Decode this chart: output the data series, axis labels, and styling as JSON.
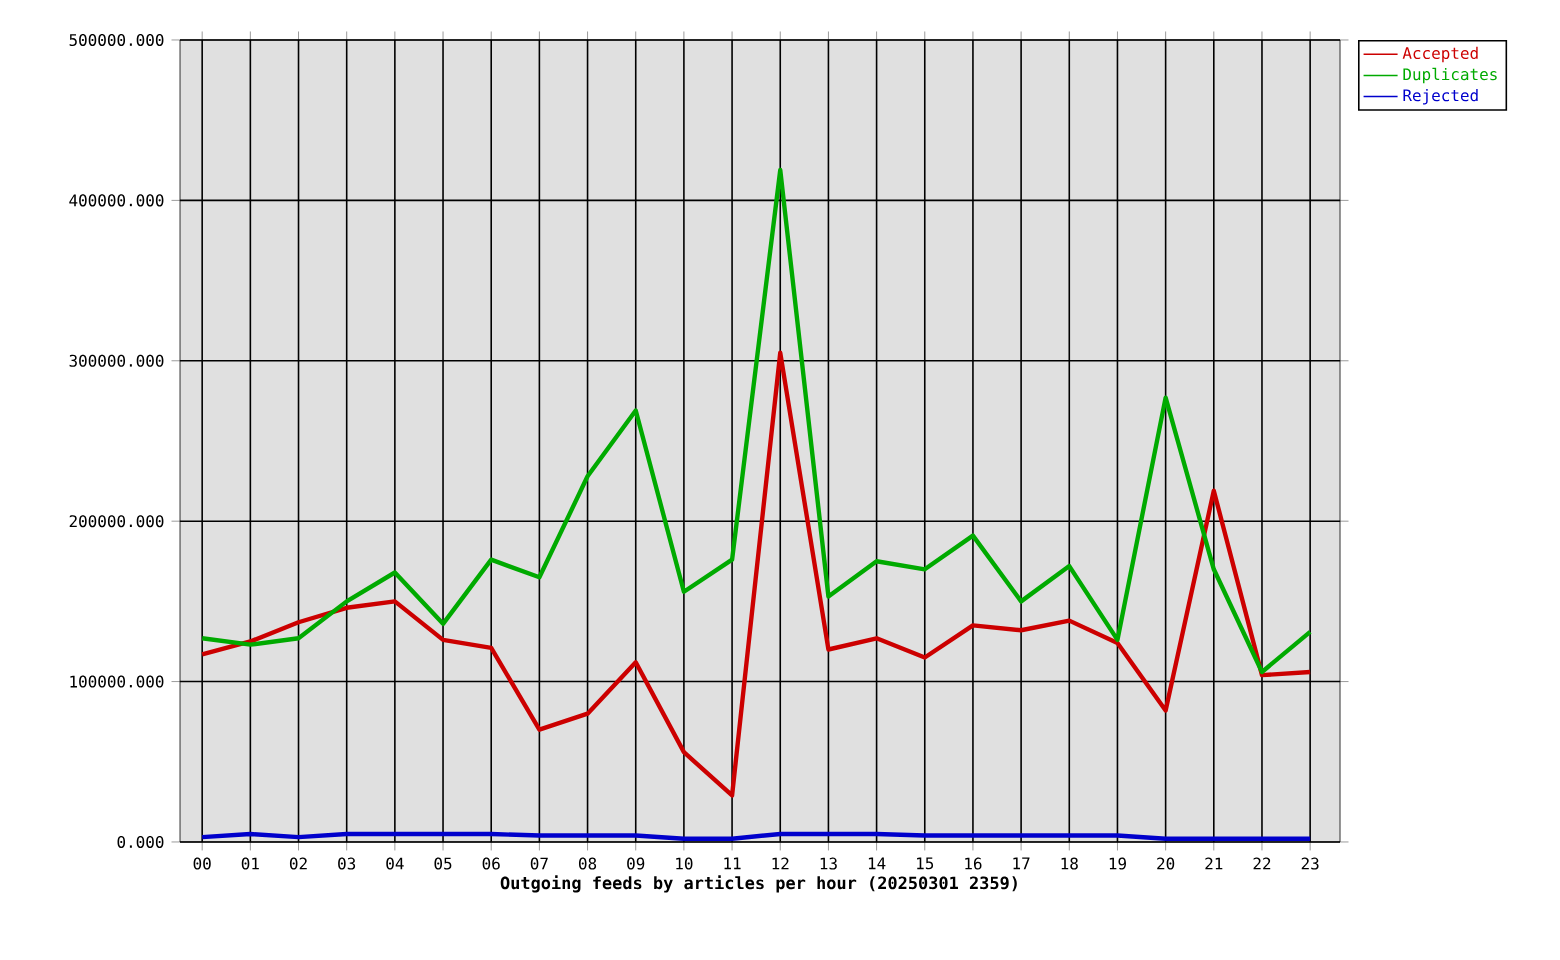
{
  "chart_data": {
    "type": "line",
    "xlabel": "Outgoing feeds by articles per hour (20250301 2359)",
    "categories": [
      "00",
      "01",
      "02",
      "03",
      "04",
      "05",
      "06",
      "07",
      "08",
      "09",
      "10",
      "11",
      "12",
      "13",
      "14",
      "15",
      "16",
      "17",
      "18",
      "19",
      "20",
      "21",
      "22",
      "23"
    ],
    "series": [
      {
        "name": "Accepted",
        "color": "#cc0000",
        "values": [
          117000,
          125000,
          137000,
          146000,
          150000,
          126000,
          121000,
          70000,
          80000,
          112000,
          56000,
          29000,
          305000,
          120000,
          127000,
          115000,
          135000,
          132000,
          138000,
          124000,
          82000,
          219000,
          104000,
          106000
        ]
      },
      {
        "name": "Duplicates",
        "color": "#00aa00",
        "values": [
          127000,
          123000,
          127000,
          150000,
          168000,
          136000,
          176000,
          165000,
          228000,
          269000,
          156000,
          176000,
          419000,
          153000,
          175000,
          170000,
          191000,
          150000,
          172000,
          126000,
          277000,
          170000,
          106000,
          131000
        ]
      },
      {
        "name": "Rejected",
        "color": "#0000cc",
        "values": [
          3000,
          5000,
          3000,
          5000,
          5000,
          5000,
          5000,
          4000,
          4000,
          4000,
          2000,
          2000,
          5000,
          5000,
          5000,
          4000,
          4000,
          4000,
          4000,
          4000,
          2000,
          2000,
          2000,
          2000
        ]
      }
    ],
    "ylim": [
      0,
      500000
    ],
    "yticks": [
      {
        "value": 0,
        "label": "0.000"
      },
      {
        "value": 100000,
        "label": "100000.000"
      },
      {
        "value": 200000,
        "label": "200000.000"
      },
      {
        "value": 300000,
        "label": "300000.000"
      },
      {
        "value": 400000,
        "label": "400000.000"
      },
      {
        "value": 500000,
        "label": "500000.000"
      }
    ],
    "grid": true,
    "legend": "top right",
    "marker": "none",
    "line_style": "solid"
  }
}
